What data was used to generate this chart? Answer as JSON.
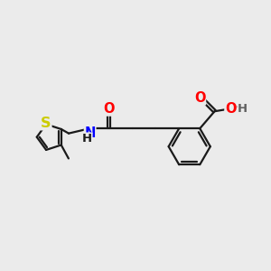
{
  "bg_color": "#ebebeb",
  "bond_color": "#1a1a1a",
  "bond_width": 1.6,
  "atom_colors": {
    "S": "#cccc00",
    "O": "#ff0000",
    "N": "#0000ff",
    "C": "#1a1a1a",
    "H": "#606060"
  },
  "font_size": 9.5,
  "cooh_o_color": "#ff0000",
  "cooh_oh_color": "#606060"
}
